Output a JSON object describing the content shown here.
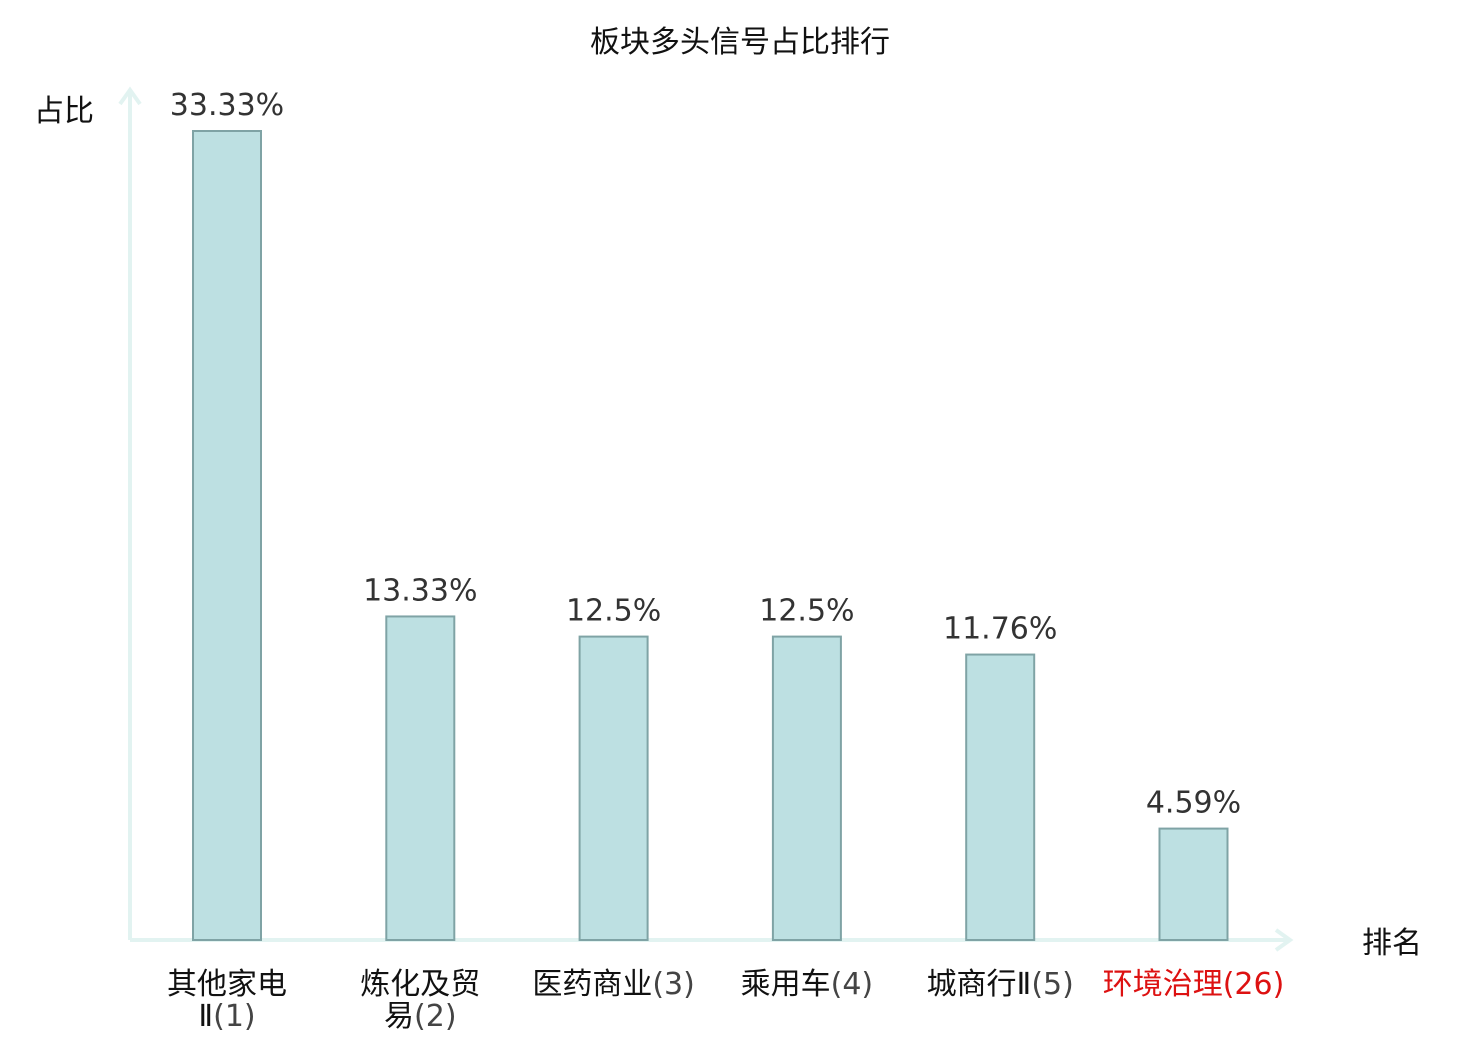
{
  "chart_data": {
    "type": "bar",
    "title": "板块多头信号占比排行",
    "xlabel": "排名",
    "ylabel": "占比",
    "ylim": [
      0,
      35
    ],
    "grid": false,
    "categories": [
      {
        "name_lines": [
          "其他家电",
          "Ⅱ"
        ],
        "rank": "(1)",
        "highlight": false
      },
      {
        "name_lines": [
          "炼化及贸",
          "易"
        ],
        "rank": "(2)",
        "highlight": false
      },
      {
        "name_lines": [
          "医药商业"
        ],
        "rank": "(3)",
        "highlight": false
      },
      {
        "name_lines": [
          "乘用车"
        ],
        "rank": "(4)",
        "highlight": false
      },
      {
        "name_lines": [
          "城商行Ⅱ"
        ],
        "rank": "(5)",
        "highlight": false
      },
      {
        "name_lines": [
          "环境治理"
        ],
        "rank": "(26)",
        "highlight": true
      }
    ],
    "values": [
      33.33,
      13.33,
      12.5,
      12.5,
      11.76,
      4.59
    ],
    "value_labels": [
      "33.33%",
      "13.33%",
      "12.5%",
      "12.5%",
      "11.76%",
      "4.59%"
    ],
    "colors": {
      "bar_fill": "#bde0e2",
      "bar_stroke": "#7fa3a5",
      "axis": "#e2f3f1",
      "highlight_text": "#dd1111",
      "text": "#111111",
      "rank_text": "#444444"
    }
  }
}
